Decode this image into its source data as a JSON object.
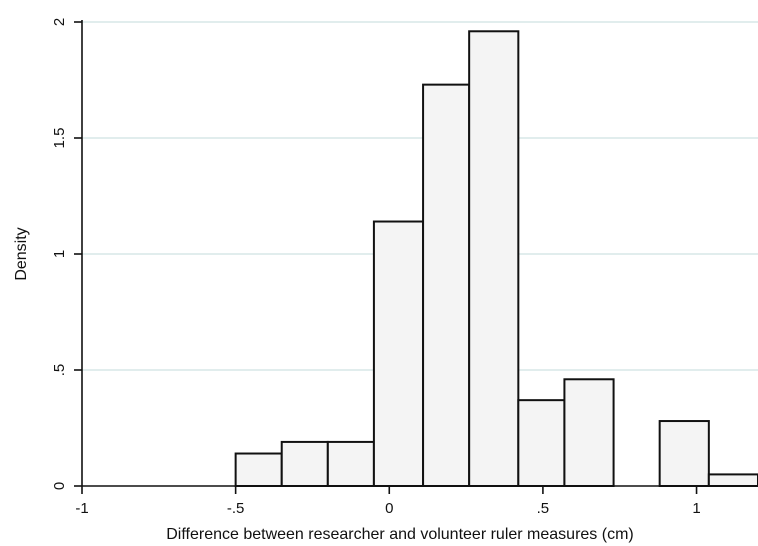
{
  "chart_data": {
    "type": "bar",
    "subtype": "histogram",
    "xlabel": "Difference between researcher and volunteer ruler measures (cm)",
    "ylabel": "Density",
    "xlim": [
      -1.0,
      1.2
    ],
    "ylim": [
      0,
      2.0
    ],
    "x_ticks": [
      {
        "value": -1,
        "label": "-1"
      },
      {
        "value": -0.5,
        "label": "-.5"
      },
      {
        "value": 0,
        "label": "0"
      },
      {
        "value": 0.5,
        "label": ".5"
      },
      {
        "value": 1,
        "label": "1"
      }
    ],
    "y_ticks": [
      {
        "value": 0,
        "label": "0"
      },
      {
        "value": 0.5,
        "label": ".5"
      },
      {
        "value": 1,
        "label": "1"
      },
      {
        "value": 1.5,
        "label": "1.5"
      },
      {
        "value": 2,
        "label": "2"
      }
    ],
    "bins": [
      {
        "x0": -0.5,
        "x1": -0.35,
        "density": 0.14
      },
      {
        "x0": -0.35,
        "x1": -0.2,
        "density": 0.19
      },
      {
        "x0": -0.2,
        "x1": -0.05,
        "density": 0.19
      },
      {
        "x0": -0.05,
        "x1": 0.11,
        "density": 1.14
      },
      {
        "x0": 0.11,
        "x1": 0.26,
        "density": 1.73
      },
      {
        "x0": 0.26,
        "x1": 0.42,
        "density": 1.96
      },
      {
        "x0": 0.42,
        "x1": 0.57,
        "density": 0.37
      },
      {
        "x0": 0.57,
        "x1": 0.73,
        "density": 0.46
      },
      {
        "x0": 0.88,
        "x1": 1.04,
        "density": 0.28
      },
      {
        "x0": 1.04,
        "x1": 1.2,
        "density": 0.05
      }
    ],
    "grid": "horizontal",
    "colors": {
      "bar_fill": "#f4f4f4",
      "bar_stroke": "#111111",
      "grid": "#cfe2e2"
    }
  }
}
